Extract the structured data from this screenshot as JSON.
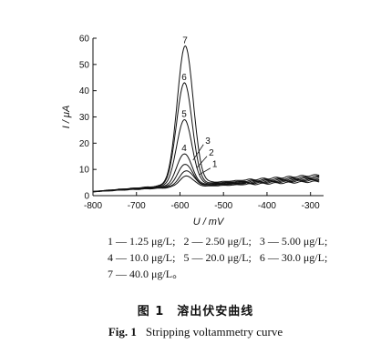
{
  "chart_data": {
    "type": "line",
    "xlabel": "U / mV",
    "ylabel": "I / μA",
    "xlim": [
      -800,
      -270
    ],
    "ylim": [
      0,
      60
    ],
    "x_ticks": [
      -800,
      -700,
      -600,
      -500,
      -400,
      -300
    ],
    "y_ticks": [
      0,
      10,
      20,
      30,
      40,
      50,
      60
    ],
    "grid": false,
    "series": [
      {
        "name": "1",
        "label": "1",
        "concentration": "1.25 μg/L",
        "peak_x": -585,
        "peak_y": 7.5,
        "tail_y": 5.5
      },
      {
        "name": "2",
        "label": "2",
        "concentration": "2.50 μg/L",
        "peak_x": -585,
        "peak_y": 9.5,
        "tail_y": 6.0
      },
      {
        "name": "3",
        "label": "3",
        "concentration": "5.00 μg/L",
        "peak_x": -588,
        "peak_y": 12.0,
        "tail_y": 6.3
      },
      {
        "name": "4",
        "label": "4",
        "concentration": "10.0 μg/L",
        "peak_x": -590,
        "peak_y": 16.0,
        "tail_y": 6.6
      },
      {
        "name": "5",
        "label": "5",
        "concentration": "20.0 μg/L",
        "peak_x": -590,
        "peak_y": 29.0,
        "tail_y": 7.0
      },
      {
        "name": "6",
        "label": "6",
        "concentration": "30.0 μg/L",
        "peak_x": -590,
        "peak_y": 43.0,
        "tail_y": 7.4
      },
      {
        "name": "7",
        "label": "7",
        "concentration": "40.0 μg/L",
        "peak_x": -588,
        "peak_y": 57.0,
        "tail_y": 8.0
      }
    ],
    "baseline_start_y": 1.5
  },
  "legend": {
    "rows": [
      [
        "1 — 1.25 μg/L;",
        "2 — 2.50 μg/L;",
        "3 — 5.00 μg/L;"
      ],
      [
        "4 — 10.0 μg/L;",
        "5 — 20.0 μg/L;",
        "6 — 30.0 μg/L;"
      ],
      [
        "7 — 40.0 μg/L。"
      ]
    ]
  },
  "caption": {
    "cn": "图 1　溶出伏安曲线",
    "en_fig": "Fig. 1",
    "en_title": "Stripping voltammetry curve"
  }
}
